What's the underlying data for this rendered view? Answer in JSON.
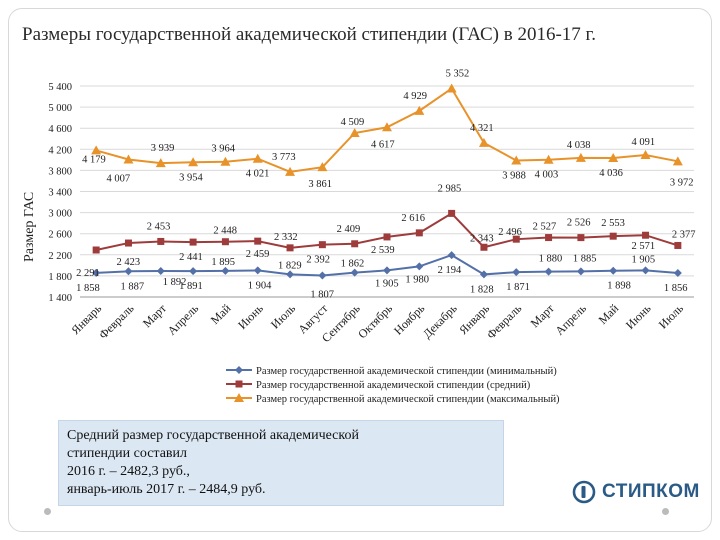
{
  "title": "Размеры государственной академической стипендии (ГАС) в 2016-17 г.",
  "colors": {
    "min": "#5470a8",
    "avg": "#9e3c3c",
    "max": "#e8922a",
    "grid": "#d9d9d9",
    "note_bg": "#dbe7f3",
    "logo": "#2a5a86"
  },
  "chart_data": {
    "type": "line",
    "ylabel": "Размер ГАС",
    "ylim": [
      1400,
      5400
    ],
    "yticks": [
      "1 400",
      "1 800",
      "2 200",
      "2 600",
      "3 000",
      "3 400",
      "3 800",
      "4 200",
      "4 600",
      "5 000",
      "5 400"
    ],
    "categories": [
      "Январь",
      "Февраль",
      "Март",
      "Апрель",
      "Май",
      "Июнь",
      "Июль",
      "Август",
      "Сентябрь",
      "Октябрь",
      "Ноябрь",
      "Декабрь",
      "Январь",
      "Февраль",
      "Март",
      "Апрель",
      "Май",
      "Июнь",
      "Июль"
    ],
    "series": [
      {
        "key": "min",
        "name": "Размер государственной академической стипендии (минимальный)",
        "marker": "diamond",
        "values": [
          1858,
          1887,
          1892,
          1891,
          1895,
          1904,
          1829,
          1807,
          1862,
          1905,
          1980,
          2194,
          1828,
          1871,
          1880,
          1885,
          1898,
          1905,
          1856
        ],
        "labels": [
          "1 858",
          "1 887",
          "1 892",
          "1 891",
          "1 895",
          "1 904",
          "1 829",
          "1 807",
          "1 862",
          "1 905",
          "1 980",
          "2 194",
          "1 828",
          "1 871",
          "1 880",
          "1 885",
          "1 898",
          "1 905",
          "1 856"
        ]
      },
      {
        "key": "avg",
        "name": "Размер государственной академической стипендии (средний)",
        "marker": "square",
        "values": [
          2291,
          2423,
          2453,
          2441,
          2448,
          2459,
          2332,
          2392,
          2409,
          2539,
          2616,
          2985,
          2343,
          2496,
          2527,
          2526,
          2553,
          2571,
          2377
        ],
        "labels": [
          "2 291",
          "2 423",
          "2 453",
          "2 441",
          "2 448",
          "2 459",
          "2 332",
          "2 392",
          "2 409",
          "2 539",
          "2 616",
          "2 985",
          "2 343",
          "2 496",
          "2 527",
          "2 526",
          "2 553",
          "2 571",
          "2 377"
        ]
      },
      {
        "key": "max",
        "name": "Размер государственной академической стипендии (максимальный)",
        "marker": "triangle",
        "values": [
          4179,
          4007,
          3939,
          3954,
          3964,
          4021,
          3773,
          3861,
          4509,
          4617,
          4929,
          5352,
          4321,
          3988,
          4003,
          4038,
          4036,
          4091,
          3972
        ],
        "labels": [
          "4 179",
          "4 007",
          "3 939",
          "3 954",
          "3 964",
          "4 021",
          "3 773",
          "3 861",
          "4 509",
          "4 617",
          "4 929",
          "5 352",
          "4 321",
          "3 988",
          "4 003",
          "4 038",
          "4 036",
          "4 091",
          "3 972"
        ]
      }
    ]
  },
  "note": {
    "line1": "Средний размер государственной академической",
    "line2": "стипендии составил",
    "line3": "2016 г. – 2482,3 руб.,",
    "line4": "январь-июль 2017 г. – 2484,9 руб."
  },
  "logo": {
    "text": "СТИПКОМ",
    "icon": "stipkom-logo-icon"
  }
}
